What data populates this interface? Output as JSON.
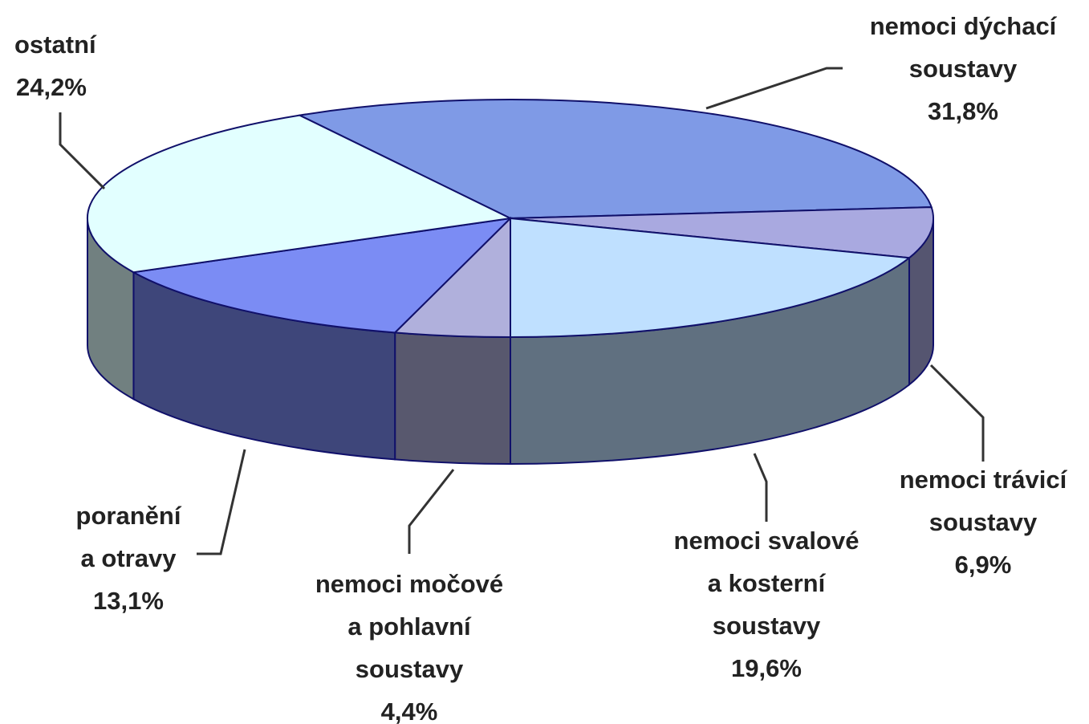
{
  "chart_data": {
    "type": "pie3d",
    "categories": [
      "nemoci dýchací\nsoustavy",
      "nemoci trávicí\nsoustavy",
      "nemoci svalové\na kosterní\nsoustavy",
      "nemoci močové\na pohlavní\nsoustavy",
      "poranění\na otravy",
      "ostatní"
    ],
    "values": [
      31.8,
      6.9,
      19.6,
      4.4,
      13.1,
      24.2
    ],
    "value_labels": [
      "31,8%",
      "6,9%",
      "19,6%",
      "4,4%",
      "13,1%",
      "24,2%"
    ],
    "colors": [
      "#7f9ae6",
      "#a9a9e0",
      "#bfe0ff",
      "#b0b0dc",
      "#7b8cf4",
      "#e2ffff"
    ]
  }
}
